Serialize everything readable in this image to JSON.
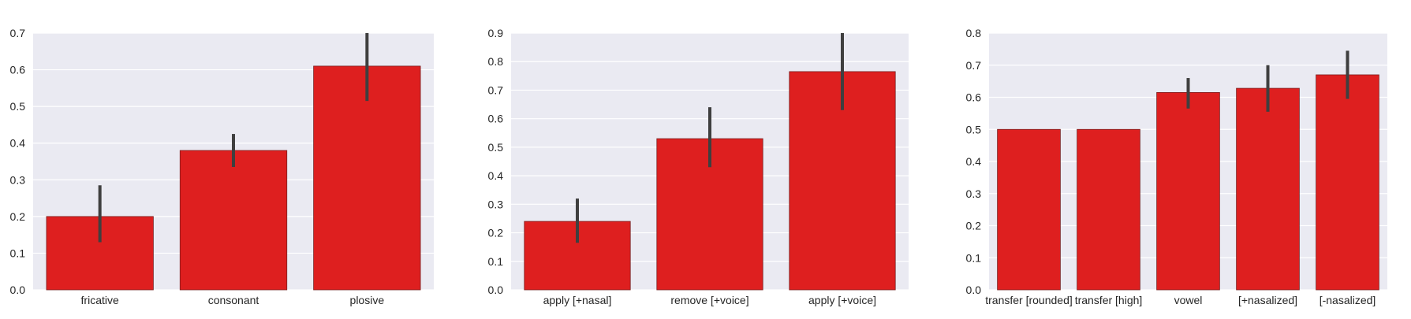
{
  "colors": {
    "bar": "#de1f1f",
    "error_bar": "#3f3f3f",
    "plot_background": "#eaeaf2",
    "grid": "#ffffff"
  },
  "chart_data": [
    {
      "type": "bar",
      "title": "",
      "xlabel": "",
      "ylabel": "",
      "ylim": [
        0,
        0.7
      ],
      "yticks": [
        "0.0",
        "0.1",
        "0.2",
        "0.3",
        "0.4",
        "0.5",
        "0.6",
        "0.7"
      ],
      "grid": true,
      "categories": [
        "fricative",
        "consonant",
        "plosive"
      ],
      "values": [
        0.2,
        0.38,
        0.61
      ],
      "error_low": [
        0.13,
        0.335,
        0.515
      ],
      "error_high": [
        0.285,
        0.425,
        0.7
      ]
    },
    {
      "type": "bar",
      "title": "",
      "xlabel": "",
      "ylabel": "",
      "ylim": [
        0,
        0.9
      ],
      "yticks": [
        "0.0",
        "0.1",
        "0.2",
        "0.3",
        "0.4",
        "0.5",
        "0.6",
        "0.7",
        "0.8",
        "0.9"
      ],
      "grid": true,
      "categories": [
        "apply [+nasal]",
        "remove [+voice]",
        "apply [+voice]"
      ],
      "values": [
        0.24,
        0.53,
        0.765
      ],
      "error_low": [
        0.165,
        0.43,
        0.63
      ],
      "error_high": [
        0.32,
        0.64,
        0.9
      ]
    },
    {
      "type": "bar",
      "title": "",
      "xlabel": "",
      "ylabel": "",
      "ylim": [
        0,
        0.8
      ],
      "yticks": [
        "0.0",
        "0.1",
        "0.2",
        "0.3",
        "0.4",
        "0.5",
        "0.6",
        "0.7",
        "0.8"
      ],
      "grid": true,
      "categories": [
        "transfer [rounded]",
        "transfer [high]",
        "vowel",
        "[+nasalized]",
        "[-nasalized]"
      ],
      "values": [
        0.5,
        0.5,
        0.615,
        0.628,
        0.67
      ],
      "error_low": [
        null,
        null,
        0.565,
        0.555,
        0.595
      ],
      "error_high": [
        null,
        null,
        0.66,
        0.7,
        0.745
      ]
    }
  ]
}
